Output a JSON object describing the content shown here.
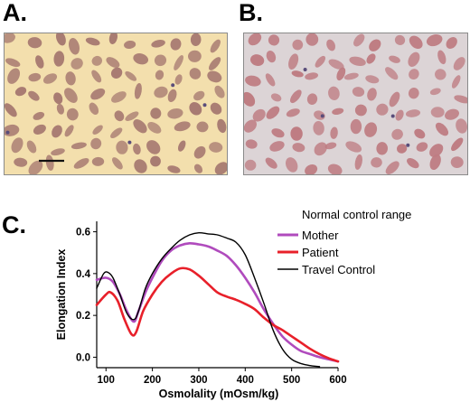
{
  "panels": {
    "a": {
      "letter": "A.",
      "scale_bar": true
    },
    "b": {
      "letter": "B.",
      "scale_bar": false
    },
    "c": {
      "letter": "C."
    }
  },
  "colors": {
    "mother": "#b04bbd",
    "patient": "#e8202a",
    "travel_control": "#000000",
    "micro_a_bg": "#f3dfad",
    "micro_a_cell": "#a87b72",
    "micro_b_bg": "#dcd4d6",
    "micro_b_cell": "#bf7d83"
  },
  "chart_data": {
    "type": "line",
    "xlabel": "Osmolality (mOsm/kg)",
    "ylabel": "Elongation Index",
    "xlim": [
      80,
      600
    ],
    "ylim": [
      -0.05,
      0.65
    ],
    "xticks": [
      100,
      200,
      300,
      400,
      500,
      600
    ],
    "yticks": [
      0.0,
      0.2,
      0.4,
      0.6
    ],
    "ytick_labels": [
      "0.0",
      "0.2",
      "0.4",
      "0.6"
    ],
    "legend": {
      "title": "Normal control range",
      "entries": [
        "Mother",
        "Patient",
        "Travel Control"
      ]
    },
    "series": [
      {
        "name": "Mother",
        "x": [
          80,
          100,
          115,
          130,
          145,
          160,
          170,
          185,
          200,
          220,
          240,
          260,
          280,
          300,
          320,
          340,
          360,
          380,
          400,
          420,
          440,
          460,
          480,
          500,
          520,
          540,
          560,
          580,
          600
        ],
        "y": [
          0.37,
          0.38,
          0.36,
          0.3,
          0.22,
          0.17,
          0.22,
          0.31,
          0.38,
          0.46,
          0.51,
          0.535,
          0.545,
          0.54,
          0.53,
          0.51,
          0.485,
          0.44,
          0.38,
          0.31,
          0.23,
          0.16,
          0.1,
          0.06,
          0.03,
          0.015,
          0.0,
          -0.01,
          -0.02
        ]
      },
      {
        "name": "Patient",
        "x": [
          80,
          100,
          110,
          125,
          140,
          155,
          165,
          180,
          200,
          220,
          240,
          260,
          280,
          300,
          320,
          340,
          360,
          380,
          400,
          420,
          440,
          460,
          480,
          500,
          520,
          540,
          560,
          580,
          600
        ],
        "y": [
          0.25,
          0.3,
          0.31,
          0.27,
          0.18,
          0.11,
          0.12,
          0.22,
          0.3,
          0.36,
          0.4,
          0.425,
          0.42,
          0.39,
          0.35,
          0.31,
          0.29,
          0.275,
          0.255,
          0.23,
          0.19,
          0.155,
          0.13,
          0.1,
          0.07,
          0.04,
          0.015,
          -0.005,
          -0.02
        ]
      },
      {
        "name": "Travel Control",
        "x": [
          80,
          95,
          105,
          115,
          130,
          145,
          160,
          170,
          185,
          200,
          220,
          240,
          260,
          280,
          300,
          320,
          340,
          360,
          380,
          400,
          420,
          440,
          460,
          480,
          500,
          520,
          540,
          560
        ],
        "y": [
          0.33,
          0.4,
          0.405,
          0.38,
          0.3,
          0.21,
          0.18,
          0.22,
          0.33,
          0.4,
          0.47,
          0.52,
          0.56,
          0.585,
          0.595,
          0.59,
          0.585,
          0.57,
          0.55,
          0.49,
          0.38,
          0.26,
          0.13,
          0.04,
          -0.01,
          -0.03,
          -0.04,
          -0.045
        ]
      }
    ]
  }
}
